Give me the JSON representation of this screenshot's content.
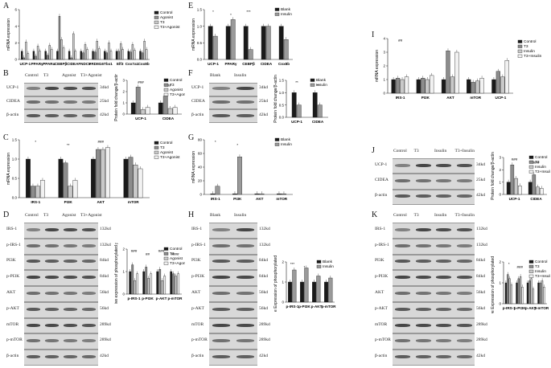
{
  "panels": {
    "A": {
      "label": "A",
      "chart_data": {
        "type": "bar",
        "ylabel": "mRNA expression",
        "ylim": [
          0,
          6
        ],
        "yticks": [
          0,
          2,
          4,
          6
        ],
        "categories": [
          "UCP-1",
          "PPARγ",
          "PPARα",
          "CEBPβ",
          "CIDEA",
          "FNDC5",
          "PRDM16",
          "Tbx1",
          "Elf3",
          "Cox7a1",
          "Cox8b"
        ],
        "series": [
          {
            "name": "Control",
            "color": "#1a1a1a",
            "values": [
              1,
              1,
              1,
              1,
              1,
              1,
              1,
              1,
              1,
              1,
              1
            ]
          },
          {
            "name": "Agonist",
            "color": "#8c8c8c",
            "values": [
              0.2,
              0.4,
              0.5,
              5.2,
              0.2,
              0.8,
              0.9,
              0.8,
              1.0,
              0.9,
              0.8
            ]
          },
          {
            "name": "T3",
            "color": "#c9c9c9",
            "values": [
              2.1,
              1.6,
              1.7,
              2.4,
              3.1,
              1.8,
              2.2,
              2.0,
              1.9,
              1.8,
              2.2
            ]
          },
          {
            "name": "T3+Agonist",
            "color": "#f2f2f2",
            "values": [
              0.7,
              1.0,
              1.2,
              1.4,
              1.0,
              1.2,
              1.3,
              1.0,
              1.2,
              1.1,
              1.2
            ]
          }
        ]
      }
    },
    "B": {
      "label": "B",
      "lanes": [
        "Control",
        "T3",
        "Agonist",
        "T3+Agonist"
      ],
      "rows": [
        {
          "name": "UCP-1",
          "kd": "34kd"
        },
        {
          "name": "CIDEA",
          "kd": "25kd"
        },
        {
          "name": "β-actin",
          "kd": "42kd"
        }
      ],
      "chart_data": {
        "type": "bar",
        "ylabel": "Protein fold change/β-actin",
        "ylim": [
          0,
          3
        ],
        "yticks": [
          0,
          1,
          2,
          3
        ],
        "categories": [
          "UCP-1",
          "CIDEA"
        ],
        "series": [
          {
            "name": "Control",
            "color": "#1a1a1a",
            "values": [
              1.0,
              1.0
            ]
          },
          {
            "name": "T3",
            "color": "#8c8c8c",
            "values": [
              2.4,
              1.6
            ]
          },
          {
            "name": "Agonist",
            "color": "#c9c9c9",
            "values": [
              0.4,
              0.5
            ]
          },
          {
            "name": "T3+Agonist",
            "color": "#f2f2f2",
            "values": [
              0.6,
              0.6
            ]
          }
        ],
        "annotations": [
          "###",
          "###"
        ]
      }
    },
    "C": {
      "label": "C",
      "chart_data": {
        "type": "bar",
        "ylabel": "mRNA expression",
        "ylim": [
          0,
          1.5
        ],
        "yticks": [
          "0.0",
          "0.5",
          "1.0",
          "1.5"
        ],
        "categories": [
          "IRS-1",
          "PI3K",
          "AKT",
          "mTOR"
        ],
        "series": [
          {
            "name": "Control",
            "color": "#1a1a1a",
            "values": [
              1.0,
              1.0,
              1.0,
              1.0
            ]
          },
          {
            "name": "T3",
            "color": "#8c8c8c",
            "values": [
              0.3,
              0.9,
              1.25,
              1.05
            ]
          },
          {
            "name": "Agonist",
            "color": "#c9c9c9",
            "values": [
              0.3,
              0.3,
              1.25,
              0.85
            ]
          },
          {
            "name": "T3+Agonist",
            "color": "#f2f2f2",
            "values": [
              0.45,
              0.45,
              1.3,
              0.75
            ]
          }
        ],
        "annotations": [
          "*",
          "**",
          "###"
        ]
      }
    },
    "D": {
      "label": "D",
      "lanes": [
        "Control",
        "T3",
        "Agonist",
        "T3+Agonist"
      ],
      "rows": [
        {
          "name": "IRS-1",
          "kd": "132kd"
        },
        {
          "name": "p-IRS-1",
          "kd": "132kd"
        },
        {
          "name": "PI3K",
          "kd": "84kd"
        },
        {
          "name": "p-PI3K",
          "kd": "84kd"
        },
        {
          "name": "AKT",
          "kd": "56kd"
        },
        {
          "name": "p-AKT",
          "kd": "56kd"
        },
        {
          "name": "mTOR",
          "kd": "289kd"
        },
        {
          "name": "p-mTOR",
          "kd": "289kd"
        },
        {
          "name": "β-actin",
          "kd": "42kd"
        }
      ],
      "chart_data": {
        "type": "bar",
        "ylabel": "Relative expression of phosphorylated proteins",
        "ylim": [
          0,
          2
        ],
        "yticks": [
          0,
          1,
          2
        ],
        "categories": [
          "p-IRS-1",
          "p-PI3K",
          "p-AKT",
          "p-mTOR"
        ],
        "series": [
          {
            "name": "Control",
            "color": "#1a1a1a",
            "values": [
              1.0,
              1.0,
              1.0,
              1.0
            ]
          },
          {
            "name": "T3",
            "color": "#8c8c8c",
            "values": [
              1.3,
              1.2,
              1.1,
              0.9
            ]
          },
          {
            "name": "Agonist",
            "color": "#c9c9c9",
            "values": [
              0.6,
              0.7,
              0.6,
              0.8
            ]
          },
          {
            "name": "T3+Agonist",
            "color": "#f2f2f2",
            "values": [
              0.9,
              0.9,
              0.8,
              0.9
            ]
          }
        ],
        "annotations": [
          "###",
          "##",
          "###",
          "####"
        ]
      }
    },
    "E": {
      "label": "E",
      "chart_data": {
        "type": "bar",
        "ylabel": "mRNA expression",
        "ylim": [
          0,
          1.5
        ],
        "yticks": [
          "0.0",
          "0.5",
          "1.0",
          "1.5"
        ],
        "categories": [
          "UCP-1",
          "PPARγ",
          "CEBPβ",
          "CIDEA",
          "Cox8b"
        ],
        "series": [
          {
            "name": "Blank",
            "color": "#1a1a1a",
            "values": [
              1.0,
              1.0,
              1.0,
              1.0,
              1.0
            ]
          },
          {
            "name": "Insulin",
            "color": "#9a9a9a",
            "values": [
              0.7,
              1.2,
              0.3,
              1.0,
              0.6
            ]
          }
        ],
        "annotations": [
          "*",
          "*",
          "***"
        ]
      }
    },
    "F": {
      "label": "F",
      "lanes": [
        "Blank",
        "Insulin"
      ],
      "rows": [
        {
          "name": "UCP-1",
          "kd": "34kd"
        },
        {
          "name": "CIDEA",
          "kd": "25kd"
        },
        {
          "name": "β-actin",
          "kd": "42kd"
        }
      ],
      "chart_data": {
        "type": "bar",
        "ylabel": "Protein fold change/β-actin",
        "ylim": [
          0,
          1.5
        ],
        "yticks": [
          "0.0",
          "0.5",
          "1.0",
          "1.5"
        ],
        "categories": [
          "UCP-1",
          "CIDEA"
        ],
        "series": [
          {
            "name": "Blank",
            "color": "#1a1a1a",
            "values": [
              1.0,
              1.0
            ]
          },
          {
            "name": "Insulin",
            "color": "#9a9a9a",
            "values": [
              0.5,
              0.5
            ]
          }
        ],
        "annotations": [
          "**",
          "**"
        ]
      }
    },
    "G": {
      "label": "G",
      "chart_data": {
        "type": "bar",
        "ylabel": "mRNA expression",
        "ylim": [
          0,
          80
        ],
        "yticks": [
          0,
          20,
          40,
          60,
          80
        ],
        "categories": [
          "IRS-1",
          "PI3K",
          "AKT",
          "mTOR"
        ],
        "series": [
          {
            "name": "Blank",
            "color": "#1a1a1a",
            "values": [
              1,
              1,
              1,
              1
            ]
          },
          {
            "name": "Insulin",
            "color": "#9a9a9a",
            "values": [
              12,
              55,
              1,
              1
            ]
          }
        ],
        "annotations": [
          "*",
          "*"
        ]
      }
    },
    "H": {
      "label": "H",
      "lanes": [
        "Blank",
        "Insulin"
      ],
      "rows": [
        {
          "name": "IRS-1",
          "kd": "132kd"
        },
        {
          "name": "p-IRS-1",
          "kd": "132kd"
        },
        {
          "name": "PI3K",
          "kd": "84kd"
        },
        {
          "name": "p-PI3K",
          "kd": "84kd"
        },
        {
          "name": "AKT",
          "kd": "56kd"
        },
        {
          "name": "p-AKT",
          "kd": "56kd"
        },
        {
          "name": "mTOR",
          "kd": "289kd"
        },
        {
          "name": "p-mTOR",
          "kd": "289kd"
        },
        {
          "name": "β-actin",
          "kd": "42kd"
        }
      ],
      "chart_data": {
        "type": "bar",
        "ylabel": "Relative Expression of phosphorylated proteins",
        "ylim": [
          0,
          2
        ],
        "yticks": [
          0,
          1,
          2
        ],
        "categories": [
          "p-IRS-1",
          "p-PI3K",
          "p-AKT",
          "p-mTOR"
        ],
        "series": [
          {
            "name": "Blank",
            "color": "#1a1a1a",
            "values": [
              1.0,
              1.0,
              1.0,
              1.0
            ]
          },
          {
            "name": "Insulin",
            "color": "#9a9a9a",
            "values": [
              1.6,
              1.7,
              1.3,
              1.2
            ]
          }
        ],
        "annotations": [
          "***",
          "*"
        ]
      }
    },
    "I": {
      "label": "I",
      "chart_data": {
        "type": "bar",
        "ylabel": "mRNA expression",
        "ylim": [
          0,
          4
        ],
        "yticks": [
          0,
          1,
          2,
          3,
          4
        ],
        "categories": [
          "IRS-1",
          "PI3K",
          "AKT",
          "mTOR",
          "UCP-1"
        ],
        "series": [
          {
            "name": "Control",
            "color": "#1a1a1a",
            "values": [
              1.0,
              1.0,
              1.0,
              1.0,
              1.0
            ]
          },
          {
            "name": "T3",
            "color": "#8c8c8c",
            "values": [
              1.1,
              1.1,
              3.1,
              0.8,
              1.6
            ]
          },
          {
            "name": "Insulin",
            "color": "#c9c9c9",
            "values": [
              1.0,
              1.0,
              1.2,
              0.9,
              1.2
            ]
          },
          {
            "name": "T3+Insulin",
            "color": "#f2f2f2",
            "values": [
              1.2,
              1.3,
              3.0,
              1.1,
              2.4
            ]
          }
        ],
        "annotations": [
          "##"
        ]
      }
    },
    "J": {
      "label": "J",
      "lanes": [
        "Control",
        "T3",
        "Insulin",
        "T3+Insulin"
      ],
      "rows": [
        {
          "name": "UCP-1",
          "kd": "34kd"
        },
        {
          "name": "CIDEA",
          "kd": "25kd"
        },
        {
          "name": "β-actin",
          "kd": "42kd"
        }
      ],
      "chart_data": {
        "type": "bar",
        "ylabel": "Protein fold change/β-actin",
        "ylim": [
          0,
          3
        ],
        "yticks": [
          0,
          1,
          2,
          3
        ],
        "categories": [
          "UCP-1",
          "CIDEA"
        ],
        "series": [
          {
            "name": "Control",
            "color": "#1a1a1a",
            "values": [
              1.0,
              1.0
            ]
          },
          {
            "name": "T3",
            "color": "#8c8c8c",
            "values": [
              2.4,
              1.6
            ]
          },
          {
            "name": "Insulin",
            "color": "#c9c9c9",
            "values": [
              1.3,
              0.6
            ]
          },
          {
            "name": "T3+Insulin",
            "color": "#f2f2f2",
            "values": [
              0.7,
              0.5
            ]
          }
        ],
        "annotations": [
          "###",
          "###"
        ]
      }
    },
    "K": {
      "label": "K",
      "lanes": [
        "Control",
        "T3",
        "Insulin",
        "T3+Insulin"
      ],
      "rows": [
        {
          "name": "IRS-1",
          "kd": "132kd"
        },
        {
          "name": "p-IRS-1",
          "kd": "132kd"
        },
        {
          "name": "PI3K",
          "kd": "84kd"
        },
        {
          "name": "p-PI3K",
          "kd": "84kd"
        },
        {
          "name": "AKT",
          "kd": "56kd"
        },
        {
          "name": "p-AKT",
          "kd": "56kd"
        },
        {
          "name": "mTOR",
          "kd": "289kd"
        },
        {
          "name": "p-mTOR",
          "kd": "289kd"
        },
        {
          "name": "β-actin",
          "kd": "42kd"
        }
      ],
      "chart_data": {
        "type": "bar",
        "ylabel": "Relative Expression of phosphorylated proteins",
        "ylim": [
          0,
          2
        ],
        "yticks": [
          0,
          1,
          2
        ],
        "categories": [
          "p-IRS-1",
          "p-PI3K",
          "p-AKT",
          "p-mTOR"
        ],
        "series": [
          {
            "name": "Control",
            "color": "#1a1a1a",
            "values": [
              1.0,
              1.0,
              1.0,
              1.0
            ]
          },
          {
            "name": "T3",
            "color": "#8c8c8c",
            "values": [
              1.4,
              1.2,
              1.1,
              1.0
            ]
          },
          {
            "name": "Insulin",
            "color": "#c9c9c9",
            "values": [
              1.2,
              1.3,
              1.2,
              1.1
            ]
          },
          {
            "name": "T3+Insulin",
            "color": "#f2f2f2",
            "values": [
              0.9,
              0.8,
              0.7,
              0.8
            ]
          }
        ],
        "annotations": [
          "*",
          "###"
        ]
      }
    }
  }
}
